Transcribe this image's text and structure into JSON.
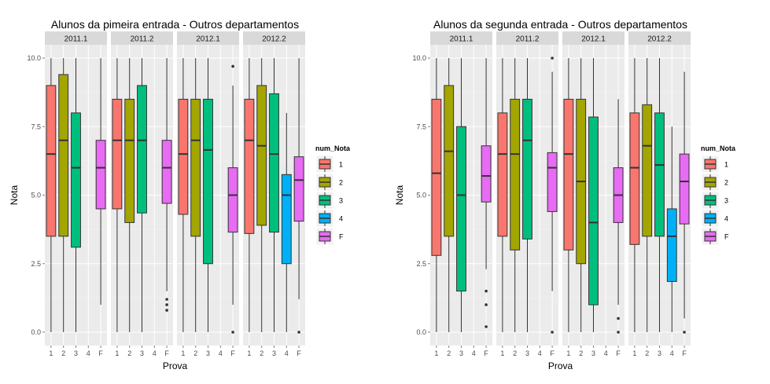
{
  "chart_data": [
    {
      "type": "boxplot",
      "title": "Alunos da pimeira entrada - Outros departamentos",
      "xlabel": "Prova",
      "ylabel": "Nota",
      "ylim": [
        0,
        10
      ],
      "yticks": [
        "0.0",
        "2.5",
        "5.0",
        "7.5",
        "10.0"
      ],
      "categories": [
        "1",
        "2",
        "3",
        "4",
        "F"
      ],
      "legend": {
        "title": "num_Nota",
        "position": "right",
        "entries": [
          "1",
          "2",
          "3",
          "4",
          "F"
        ]
      },
      "facets": [
        {
          "label": "2011.1",
          "boxes": [
            {
              "cat": "1",
              "min": 0,
              "q1": 3.5,
              "median": 6.5,
              "q3": 9,
              "max": 10,
              "outliers": []
            },
            {
              "cat": "2",
              "min": 0,
              "q1": 3.5,
              "median": 7,
              "q3": 9.4,
              "max": 10,
              "outliers": []
            },
            {
              "cat": "3",
              "min": 0,
              "q1": 3.1,
              "median": 6,
              "q3": 8,
              "max": 10,
              "outliers": []
            },
            {
              "cat": "F",
              "min": 1,
              "q1": 4.5,
              "median": 6,
              "q3": 7,
              "max": 10,
              "outliers": []
            }
          ]
        },
        {
          "label": "2011.2",
          "boxes": [
            {
              "cat": "1",
              "min": 0,
              "q1": 4.5,
              "median": 7,
              "q3": 8.5,
              "max": 10,
              "outliers": []
            },
            {
              "cat": "2",
              "min": 0,
              "q1": 4,
              "median": 7,
              "q3": 8.5,
              "max": 10,
              "outliers": []
            },
            {
              "cat": "3",
              "min": 0,
              "q1": 4.35,
              "median": 7,
              "q3": 9,
              "max": 10,
              "outliers": []
            },
            {
              "cat": "F",
              "min": 1.5,
              "q1": 4.7,
              "median": 6,
              "q3": 7,
              "max": 10,
              "outliers": [
                1.2,
                1.0,
                0.8
              ]
            }
          ]
        },
        {
          "label": "2012.1",
          "boxes": [
            {
              "cat": "1",
              "min": 0,
              "q1": 4.3,
              "median": 6.5,
              "q3": 8.5,
              "max": 10,
              "outliers": []
            },
            {
              "cat": "2",
              "min": 0,
              "q1": 3.5,
              "median": 7,
              "q3": 8.5,
              "max": 10,
              "outliers": []
            },
            {
              "cat": "3",
              "min": 0,
              "q1": 2.5,
              "median": 6.65,
              "q3": 8.5,
              "max": 10,
              "outliers": []
            },
            {
              "cat": "F",
              "min": 1,
              "q1": 3.65,
              "median": 5,
              "q3": 6,
              "max": 9,
              "outliers": [
                9.7,
                0
              ]
            }
          ]
        },
        {
          "label": "2012.2",
          "boxes": [
            {
              "cat": "1",
              "min": 0,
              "q1": 3.6,
              "median": 7,
              "q3": 8.5,
              "max": 10,
              "outliers": []
            },
            {
              "cat": "2",
              "min": 0,
              "q1": 3.9,
              "median": 6.8,
              "q3": 9,
              "max": 10,
              "outliers": []
            },
            {
              "cat": "3",
              "min": 0,
              "q1": 3.65,
              "median": 6.5,
              "q3": 8.7,
              "max": 10,
              "outliers": []
            },
            {
              "cat": "4",
              "min": 0,
              "q1": 2.5,
              "median": 5,
              "q3": 5.75,
              "max": 8,
              "outliers": []
            },
            {
              "cat": "F",
              "min": 1.2,
              "q1": 4.05,
              "median": 5.55,
              "q3": 6.4,
              "max": 10,
              "outliers": [
                0
              ]
            }
          ]
        }
      ]
    },
    {
      "type": "boxplot",
      "title": "Alunos da segunda entrada - Outros departamentos",
      "xlabel": "Prova",
      "ylabel": "Nota",
      "ylim": [
        0,
        10
      ],
      "yticks": [
        "0.0",
        "2.5",
        "5.0",
        "7.5",
        "10.0"
      ],
      "categories": [
        "1",
        "2",
        "3",
        "4",
        "F"
      ],
      "legend": {
        "title": "num_Nota",
        "position": "right",
        "entries": [
          "1",
          "2",
          "3",
          "4",
          "F"
        ]
      },
      "facets": [
        {
          "label": "2011.1",
          "boxes": [
            {
              "cat": "1",
              "min": 0,
              "q1": 2.8,
              "median": 5.8,
              "q3": 8.5,
              "max": 10,
              "outliers": []
            },
            {
              "cat": "2",
              "min": 0,
              "q1": 3.5,
              "median": 6.6,
              "q3": 9,
              "max": 10,
              "outliers": []
            },
            {
              "cat": "3",
              "min": 0,
              "q1": 1.5,
              "median": 5,
              "q3": 7.5,
              "max": 10,
              "outliers": []
            },
            {
              "cat": "F",
              "min": 2.3,
              "q1": 4.75,
              "median": 5.7,
              "q3": 6.8,
              "max": 10,
              "outliers": [
                1.5,
                1.0,
                0.2
              ]
            }
          ]
        },
        {
          "label": "2011.2",
          "boxes": [
            {
              "cat": "1",
              "min": 0,
              "q1": 3.5,
              "median": 6.5,
              "q3": 8,
              "max": 10,
              "outliers": []
            },
            {
              "cat": "2",
              "min": 0,
              "q1": 3,
              "median": 6.5,
              "q3": 8.5,
              "max": 10,
              "outliers": []
            },
            {
              "cat": "3",
              "min": 0,
              "q1": 3.4,
              "median": 7,
              "q3": 8.5,
              "max": 10,
              "outliers": []
            },
            {
              "cat": "F",
              "min": 1.5,
              "q1": 4.4,
              "median": 6,
              "q3": 6.55,
              "max": 9.5,
              "outliers": [
                10,
                0
              ]
            }
          ]
        },
        {
          "label": "2012.1",
          "boxes": [
            {
              "cat": "1",
              "min": 0,
              "q1": 3,
              "median": 6.5,
              "q3": 8.5,
              "max": 10,
              "outliers": []
            },
            {
              "cat": "2",
              "min": 0,
              "q1": 2.5,
              "median": 5.5,
              "q3": 8.5,
              "max": 10,
              "outliers": []
            },
            {
              "cat": "3",
              "min": 0,
              "q1": 1,
              "median": 4,
              "q3": 7.85,
              "max": 10,
              "outliers": []
            },
            {
              "cat": "F",
              "min": 1,
              "q1": 4,
              "median": 5,
              "q3": 6,
              "max": 8.5,
              "outliers": [
                0.5,
                0
              ]
            }
          ]
        },
        {
          "label": "2012.2",
          "boxes": [
            {
              "cat": "1",
              "min": 0,
              "q1": 3.2,
              "median": 6,
              "q3": 8,
              "max": 10,
              "outliers": []
            },
            {
              "cat": "2",
              "min": 0,
              "q1": 3.5,
              "median": 6.8,
              "q3": 8.3,
              "max": 10,
              "outliers": []
            },
            {
              "cat": "3",
              "min": 0,
              "q1": 3.5,
              "median": 6.1,
              "q3": 8,
              "max": 10,
              "outliers": []
            },
            {
              "cat": "4",
              "min": 0,
              "q1": 1.85,
              "median": 3.5,
              "q3": 4.5,
              "max": 7.5,
              "outliers": []
            },
            {
              "cat": "F",
              "min": 0.5,
              "q1": 3.95,
              "median": 5.5,
              "q3": 6.5,
              "max": 9.5,
              "outliers": [
                0
              ]
            }
          ]
        }
      ]
    }
  ],
  "colors": {
    "1": "#F8766D",
    "2": "#A3A500",
    "3": "#00BF7D",
    "4": "#00B0F6",
    "F": "#E76BF3"
  }
}
